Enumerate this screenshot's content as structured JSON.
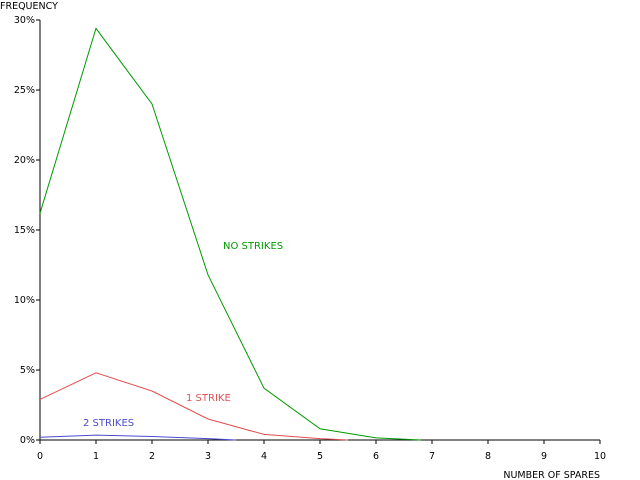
{
  "chart_data": {
    "type": "line",
    "ylabel": "FREQUENCY",
    "xlabel": "NUMBER OF SPARES",
    "xlim": [
      0,
      10
    ],
    "ylim": [
      0,
      30
    ],
    "x_ticks": [
      "0",
      "1",
      "2",
      "3",
      "4",
      "5",
      "6",
      "7",
      "8",
      "9",
      "10"
    ],
    "y_ticks": [
      "0%",
      "5%",
      "10%",
      "15%",
      "20%",
      "25%",
      "30%"
    ],
    "grid": false,
    "series": [
      {
        "name": "NO STRIKES",
        "color": "#009900",
        "x": [
          0,
          1,
          2,
          3,
          4,
          5,
          6,
          6.8
        ],
        "y": [
          16.2,
          29.4,
          24.0,
          11.8,
          3.7,
          0.8,
          0.15,
          0
        ]
      },
      {
        "name": "1 STRIKE",
        "color": "#e05050",
        "x": [
          0,
          1,
          2,
          3,
          4,
          5,
          5.5
        ],
        "y": [
          2.9,
          4.8,
          3.5,
          1.5,
          0.4,
          0.1,
          0
        ]
      },
      {
        "name": "2 STRIKES",
        "color": "#4b4bcc",
        "x": [
          0,
          1,
          2,
          3,
          3.5
        ],
        "y": [
          0.2,
          0.35,
          0.25,
          0.1,
          0
        ]
      }
    ]
  }
}
